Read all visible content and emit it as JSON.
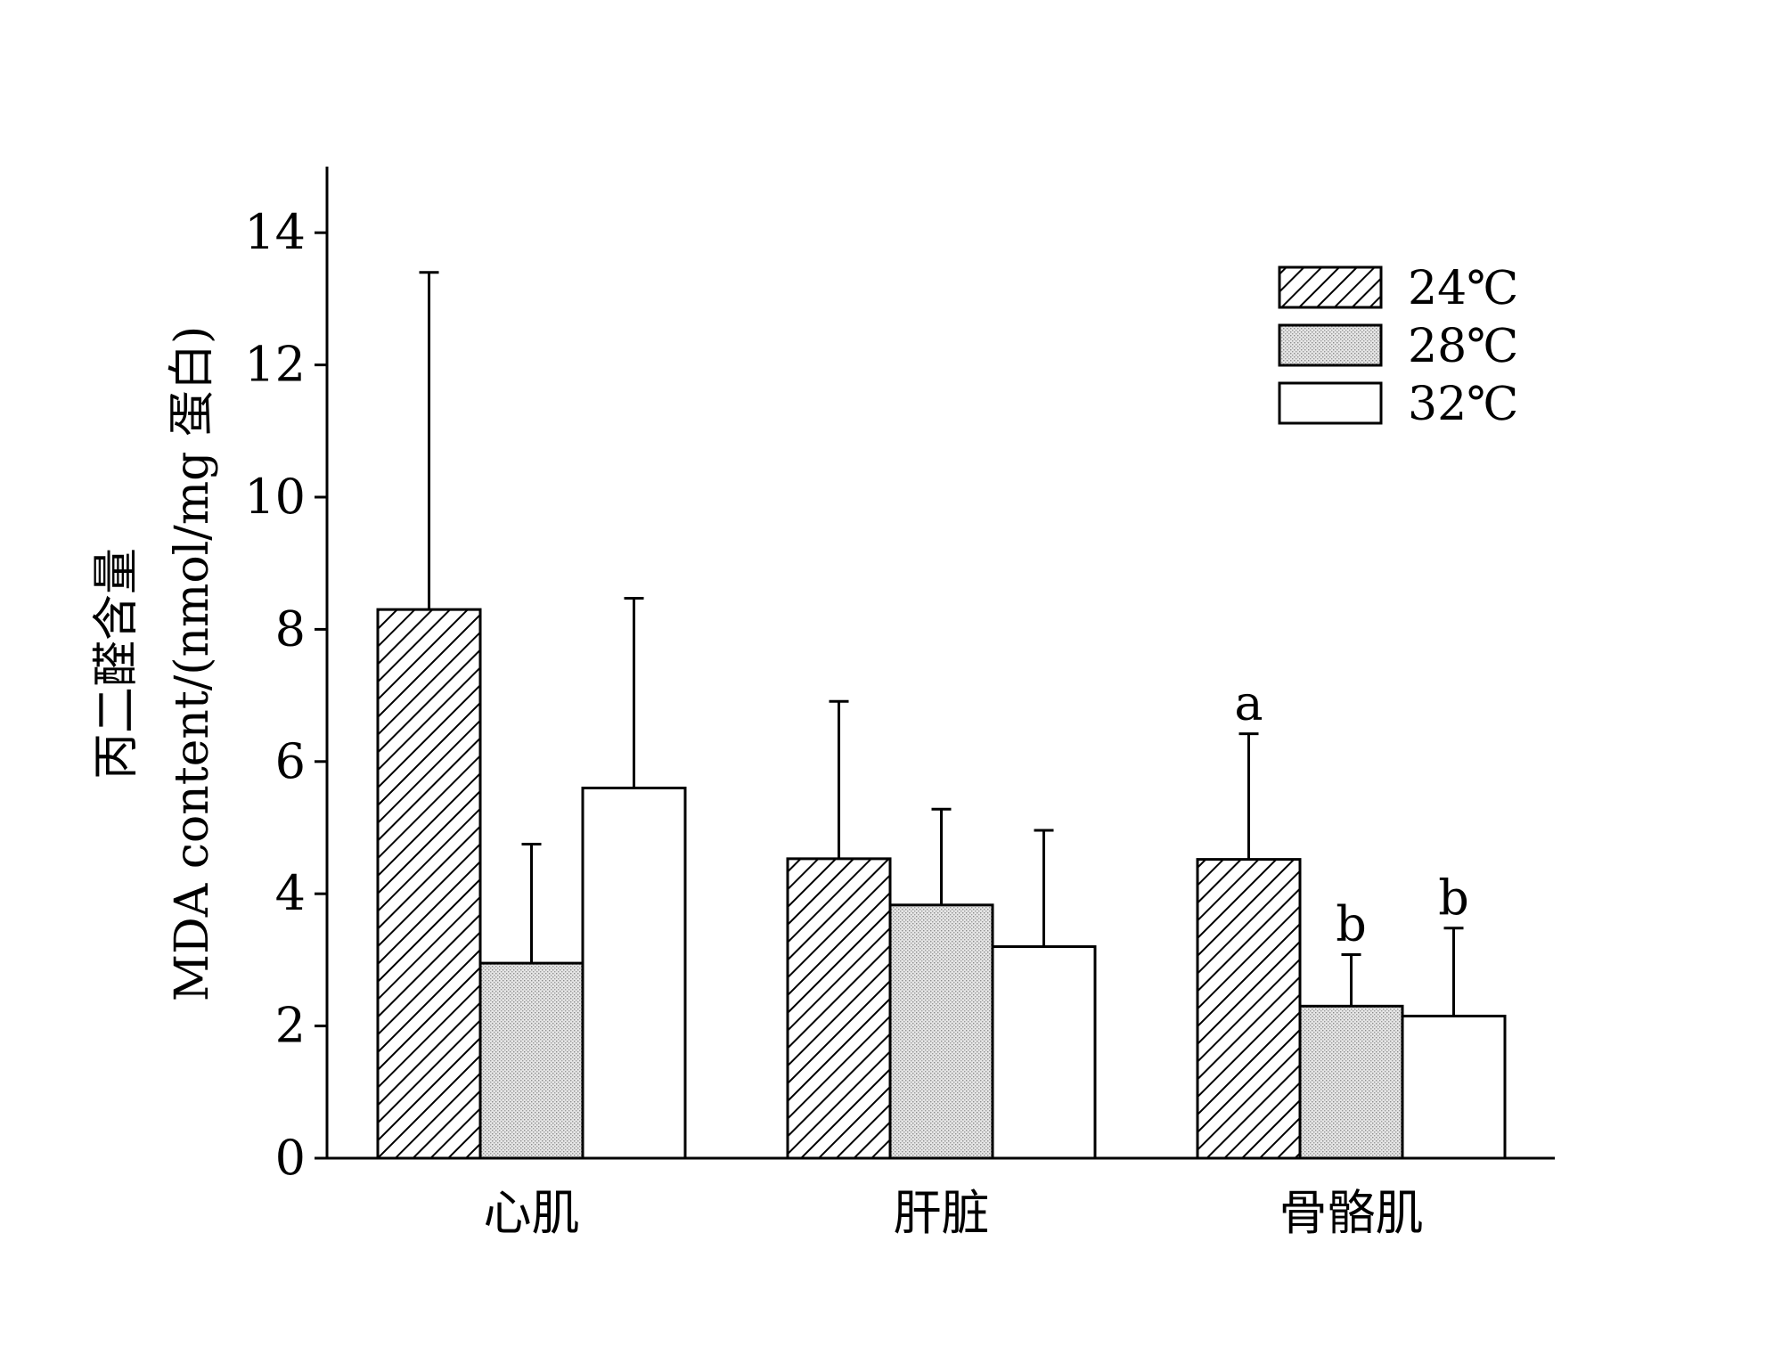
{
  "chart_data": {
    "type": "bar",
    "categories": [
      "心肌",
      "肝脏",
      "骨骼肌"
    ],
    "ylabel_line1": "丙二醛含量",
    "ylabel_line2": "MDA content/(nmol/mg 蛋白)",
    "xlabel": "",
    "ylim": [
      0,
      15
    ],
    "yticks": [
      0,
      2,
      4,
      6,
      8,
      10,
      12,
      14
    ],
    "legend_position": "top-right",
    "series": [
      {
        "name": "24℃",
        "pattern": "hatch",
        "values": [
          8.3,
          4.53,
          4.52
        ],
        "errors": [
          5.1,
          2.38,
          1.9
        ],
        "labels": [
          "",
          "",
          "a"
        ]
      },
      {
        "name": "28℃",
        "pattern": "dotted",
        "values": [
          2.95,
          3.83,
          2.3
        ],
        "errors": [
          1.8,
          1.45,
          0.78
        ],
        "labels": [
          "",
          "",
          "b"
        ]
      },
      {
        "name": "32℃",
        "pattern": "white",
        "values": [
          5.6,
          3.2,
          2.15
        ],
        "errors": [
          2.87,
          1.76,
          1.33
        ],
        "labels": [
          "",
          "",
          "b"
        ]
      }
    ]
  }
}
